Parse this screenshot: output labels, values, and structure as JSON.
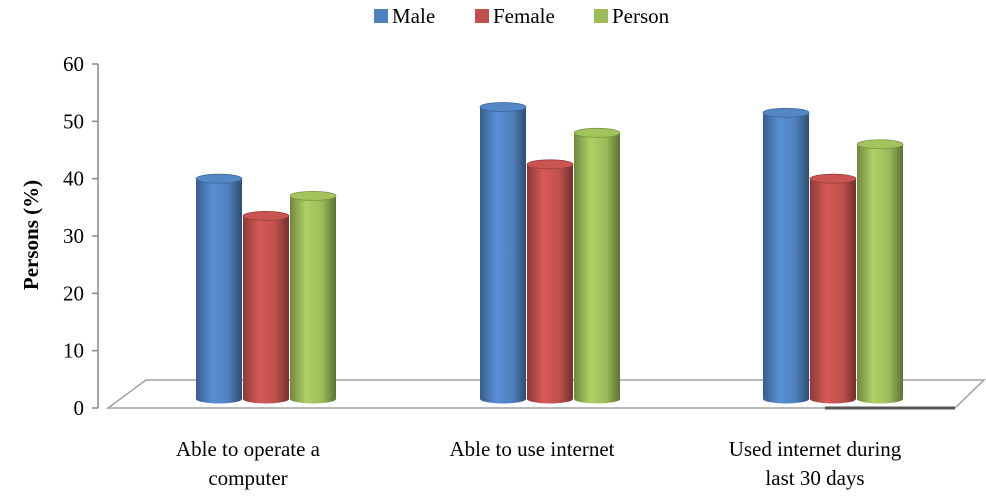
{
  "chart_data": {
    "type": "bar",
    "style": "3d-cylinder",
    "categories": [
      [
        "Able to operate a",
        "computer"
      ],
      [
        "Able to use internet"
      ],
      [
        "Used internet during",
        "last 30 days"
      ]
    ],
    "series": [
      {
        "name": "Male",
        "color": "#4F81BD",
        "values": [
          40,
          52.5,
          51.5
        ]
      },
      {
        "name": "Female",
        "color": "#C0504D",
        "values": [
          33.5,
          42.5,
          40
        ]
      },
      {
        "name": "Person",
        "color": "#9BBB59",
        "values": [
          37,
          48,
          46
        ]
      }
    ],
    "ylabel": "Persons (%)",
    "xlabel": "",
    "ylim": [
      0,
      60
    ],
    "yticks": [
      0,
      10,
      20,
      30,
      40,
      50,
      60
    ],
    "legend_position": "top-center",
    "grid": false
  }
}
